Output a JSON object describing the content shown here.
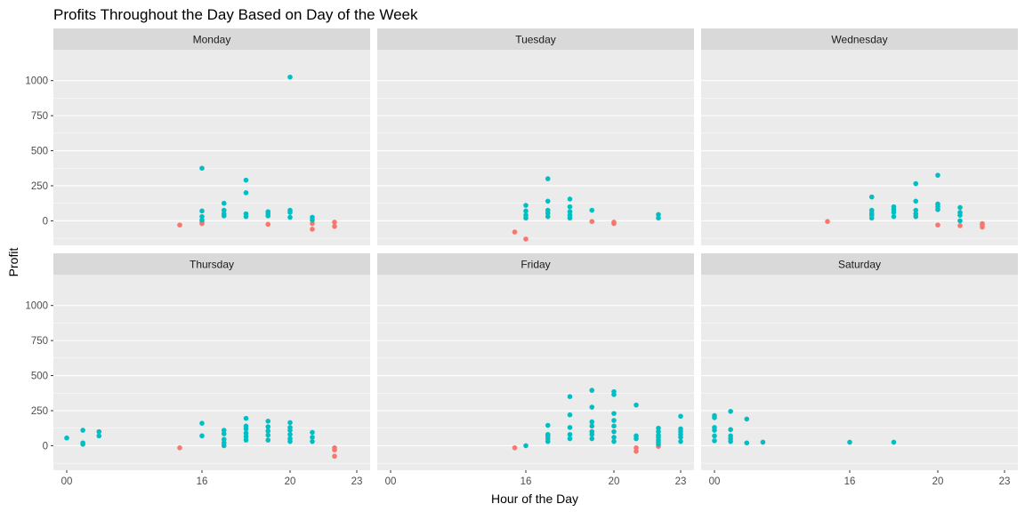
{
  "chart_data": {
    "type": "scatter",
    "title": "Profits Throughout the Day Based on Day of the Week",
    "xlabel": "Hour of the Day",
    "ylabel": "Profit",
    "x_ticks": [
      "00",
      "16",
      "20",
      "23"
    ],
    "y_ticks": [
      0,
      250,
      500,
      750,
      1000
    ],
    "ylim": [
      -175,
      1220
    ],
    "grid": true,
    "colors": {
      "positive": "#00BFC4",
      "negative": "#F8766D",
      "panel": "#EBEBEB",
      "strip": "#D9D9D9",
      "grid": "#FFFFFF"
    },
    "facets": [
      {
        "name": "Monday",
        "points": [
          [
            14,
            -30
          ],
          [
            16,
            -20
          ],
          [
            16,
            -10
          ],
          [
            16,
            5
          ],
          [
            16,
            30
          ],
          [
            16,
            70
          ],
          [
            16,
            375
          ],
          [
            17,
            35
          ],
          [
            17,
            50
          ],
          [
            17,
            75
          ],
          [
            17,
            125
          ],
          [
            18,
            30
          ],
          [
            18,
            50
          ],
          [
            18,
            200
          ],
          [
            18,
            290
          ],
          [
            19,
            -25
          ],
          [
            19,
            35
          ],
          [
            19,
            50
          ],
          [
            19,
            65
          ],
          [
            20,
            25
          ],
          [
            20,
            60
          ],
          [
            20,
            75
          ],
          [
            20,
            1025
          ],
          [
            21,
            -60
          ],
          [
            21,
            -20
          ],
          [
            21,
            5
          ],
          [
            21,
            25
          ],
          [
            22,
            -40
          ],
          [
            22,
            -10
          ]
        ]
      },
      {
        "name": "Tuesday",
        "points": [
          [
            15,
            -80
          ],
          [
            16,
            -130
          ],
          [
            16,
            20
          ],
          [
            16,
            40
          ],
          [
            16,
            70
          ],
          [
            16,
            110
          ],
          [
            17,
            30
          ],
          [
            17,
            55
          ],
          [
            17,
            75
          ],
          [
            17,
            140
          ],
          [
            17,
            300
          ],
          [
            18,
            20
          ],
          [
            18,
            40
          ],
          [
            18,
            65
          ],
          [
            18,
            100
          ],
          [
            18,
            155
          ],
          [
            19,
            -5
          ],
          [
            19,
            75
          ],
          [
            20,
            -20
          ],
          [
            20,
            -10
          ],
          [
            22,
            20
          ],
          [
            22,
            45
          ]
        ]
      },
      {
        "name": "Wednesday",
        "points": [
          [
            14,
            -5
          ],
          [
            17,
            20
          ],
          [
            17,
            40
          ],
          [
            17,
            55
          ],
          [
            17,
            75
          ],
          [
            17,
            170
          ],
          [
            18,
            30
          ],
          [
            18,
            60
          ],
          [
            18,
            80
          ],
          [
            18,
            100
          ],
          [
            19,
            30
          ],
          [
            19,
            50
          ],
          [
            19,
            75
          ],
          [
            19,
            140
          ],
          [
            19,
            265
          ],
          [
            20,
            -30
          ],
          [
            20,
            80
          ],
          [
            20,
            100
          ],
          [
            20,
            120
          ],
          [
            20,
            325
          ],
          [
            21,
            -35
          ],
          [
            21,
            0
          ],
          [
            21,
            40
          ],
          [
            21,
            60
          ],
          [
            21,
            95
          ],
          [
            22,
            -45
          ],
          [
            22,
            -30
          ],
          [
            22,
            -20
          ]
        ]
      },
      {
        "name": "Thursday",
        "points": [
          [
            0,
            55
          ],
          [
            2,
            10
          ],
          [
            2,
            20
          ],
          [
            2,
            110
          ],
          [
            4,
            70
          ],
          [
            4,
            100
          ],
          [
            14,
            -15
          ],
          [
            16,
            70
          ],
          [
            16,
            160
          ],
          [
            17,
            0
          ],
          [
            17,
            20
          ],
          [
            17,
            45
          ],
          [
            17,
            85
          ],
          [
            17,
            110
          ],
          [
            18,
            40
          ],
          [
            18,
            65
          ],
          [
            18,
            90
          ],
          [
            18,
            120
          ],
          [
            18,
            140
          ],
          [
            18,
            195
          ],
          [
            19,
            40
          ],
          [
            19,
            75
          ],
          [
            19,
            105
          ],
          [
            19,
            135
          ],
          [
            19,
            175
          ],
          [
            20,
            30
          ],
          [
            20,
            50
          ],
          [
            20,
            80
          ],
          [
            20,
            110
          ],
          [
            20,
            130
          ],
          [
            20,
            165
          ],
          [
            21,
            30
          ],
          [
            21,
            60
          ],
          [
            21,
            95
          ],
          [
            22,
            -75
          ],
          [
            22,
            -30
          ],
          [
            22,
            -15
          ]
        ]
      },
      {
        "name": "Friday",
        "points": [
          [
            15,
            -15
          ],
          [
            16,
            0
          ],
          [
            17,
            30
          ],
          [
            17,
            50
          ],
          [
            17,
            70
          ],
          [
            17,
            80
          ],
          [
            17,
            145
          ],
          [
            18,
            50
          ],
          [
            18,
            80
          ],
          [
            18,
            130
          ],
          [
            18,
            220
          ],
          [
            18,
            350
          ],
          [
            19,
            50
          ],
          [
            19,
            80
          ],
          [
            19,
            100
          ],
          [
            19,
            140
          ],
          [
            19,
            170
          ],
          [
            19,
            275
          ],
          [
            19,
            395
          ],
          [
            20,
            30
          ],
          [
            20,
            60
          ],
          [
            20,
            100
          ],
          [
            20,
            140
          ],
          [
            20,
            180
          ],
          [
            20,
            230
          ],
          [
            20,
            365
          ],
          [
            20,
            385
          ],
          [
            21,
            -40
          ],
          [
            21,
            -15
          ],
          [
            21,
            50
          ],
          [
            21,
            70
          ],
          [
            21,
            290
          ],
          [
            22,
            -5
          ],
          [
            22,
            10
          ],
          [
            22,
            25
          ],
          [
            22,
            40
          ],
          [
            22,
            60
          ],
          [
            22,
            75
          ],
          [
            22,
            100
          ],
          [
            22,
            125
          ],
          [
            23,
            30
          ],
          [
            23,
            60
          ],
          [
            23,
            80
          ],
          [
            23,
            100
          ],
          [
            23,
            120
          ],
          [
            23,
            210
          ]
        ]
      },
      {
        "name": "Saturday",
        "points": [
          [
            0,
            35
          ],
          [
            0,
            70
          ],
          [
            0,
            110
          ],
          [
            0,
            130
          ],
          [
            0,
            200
          ],
          [
            0,
            215
          ],
          [
            2,
            30
          ],
          [
            2,
            50
          ],
          [
            2,
            70
          ],
          [
            2,
            115
          ],
          [
            2,
            245
          ],
          [
            4,
            20
          ],
          [
            4,
            190
          ],
          [
            6,
            25
          ],
          [
            16,
            25
          ],
          [
            18,
            25
          ]
        ]
      }
    ]
  }
}
